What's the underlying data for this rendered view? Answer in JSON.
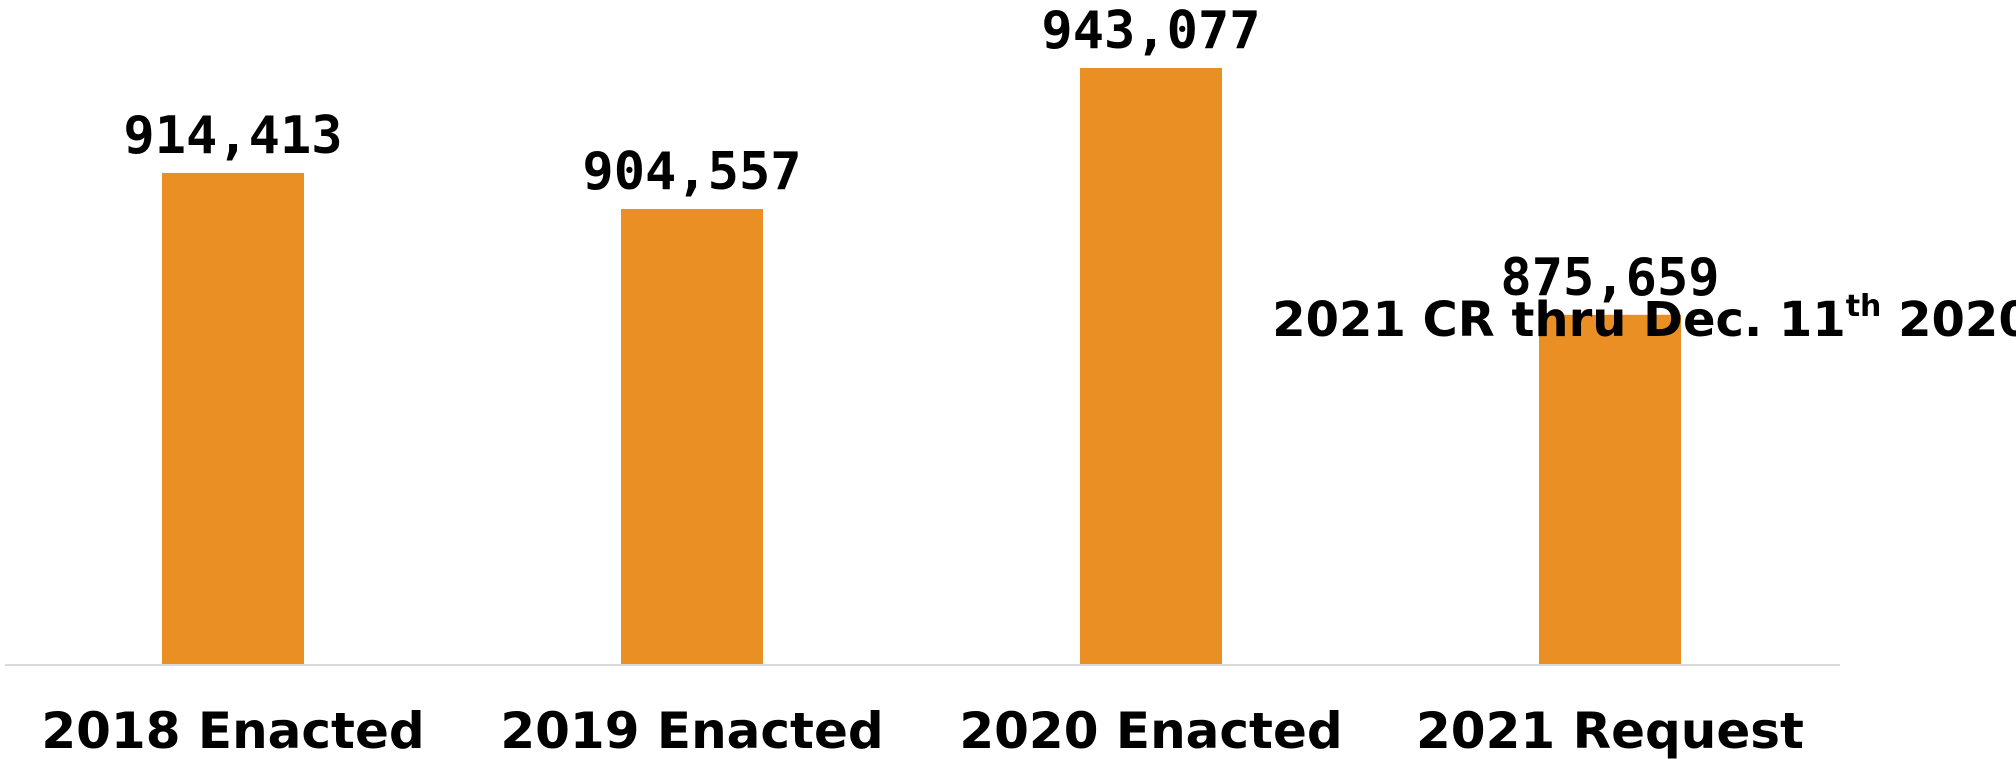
{
  "chart_data": {
    "type": "bar",
    "categories": [
      "2018 Enacted",
      "2019 Enacted",
      "2020 Enacted",
      "2021 Request"
    ],
    "values": [
      914413,
      904557,
      943077,
      875659
    ],
    "value_labels": [
      "914,413",
      "904,557",
      "943,077",
      "875,659"
    ],
    "title": "",
    "xlabel": "",
    "ylabel": "",
    "ylim": [
      780000,
      943077
    ],
    "grid": false,
    "legend": "none",
    "bar_color": "#E98F24",
    "axis_color": "#D9D9D9",
    "annotation": {
      "text_before": "2021 CR thru Dec. 11",
      "superscript": "th",
      "text_after": " 2020"
    }
  }
}
